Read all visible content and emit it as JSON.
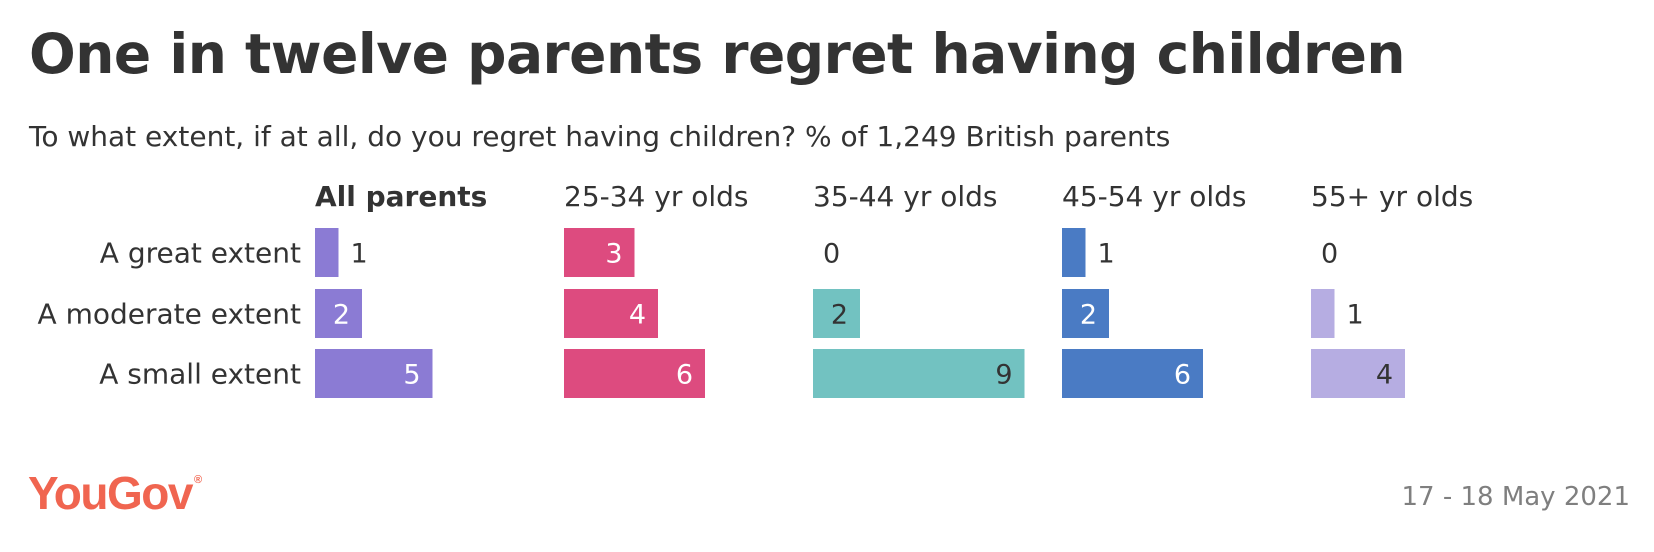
{
  "title": "One in twelve parents regret having children",
  "subtitle": "To what extent, if at all, do you regret having children? % of 1,249 British parents",
  "footer": {
    "brand": "YouGov",
    "brand_mark": "®",
    "date": "17 - 18 May 2021"
  },
  "chart_data": {
    "type": "bar",
    "orientation": "horizontal",
    "categories": [
      "A great extent",
      "A moderate extent",
      "A small extent"
    ],
    "series": [
      {
        "name": "All parents",
        "values": [
          1,
          2,
          5
        ],
        "color": "#8b7bd4",
        "emphasized": true
      },
      {
        "name": "25-34 yr olds",
        "values": [
          3,
          4,
          6
        ],
        "color": "#dd4b7f"
      },
      {
        "name": "35-44 yr olds",
        "values": [
          0,
          2,
          9
        ],
        "color": "#72c2c1"
      },
      {
        "name": "45-54 yr olds",
        "values": [
          1,
          2,
          6
        ],
        "color": "#4a7bc4"
      },
      {
        "name": "55+ yr olds",
        "values": [
          0,
          1,
          4
        ],
        "color": "#b6ade2"
      }
    ],
    "value_unit": "%",
    "legend": "panel headers",
    "grid": false
  }
}
